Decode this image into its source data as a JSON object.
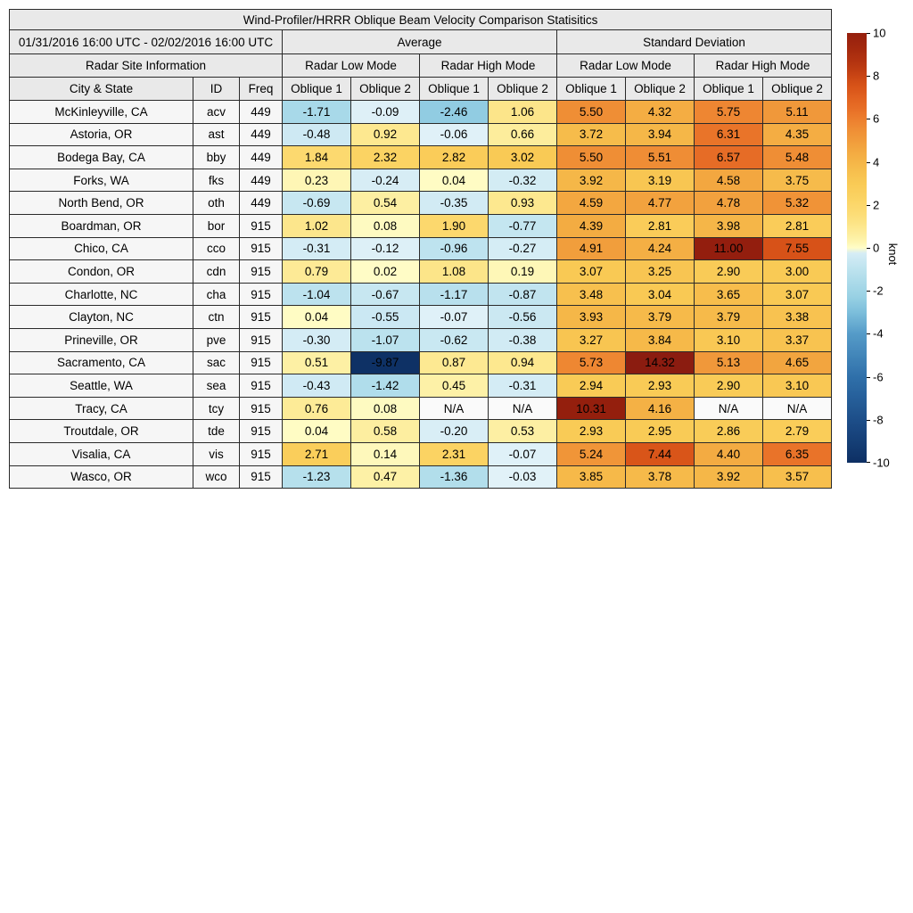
{
  "title": "Wind-Profiler/HRRR Oblique Beam Velocity Comparison Statisitics",
  "date_range": "01/31/2016 16:00 UTC - 02/02/2016 16:00 UTC",
  "headers": {
    "site_info": "Radar Site Information",
    "average": "Average",
    "std_dev": "Standard Deviation",
    "low_mode": "Radar Low Mode",
    "high_mode": "Radar High Mode",
    "city": "City & State",
    "id": "ID",
    "freq": "Freq",
    "oblique1": "Oblique 1",
    "oblique2": "Oblique 2"
  },
  "colorbar": {
    "label": "knot",
    "min": -10,
    "max": 10,
    "ticks": [
      10,
      8,
      6,
      4,
      2,
      0,
      -2,
      -4,
      -6,
      -8,
      -10
    ],
    "colormap_stops": [
      [
        -10.0,
        "#0d2f63"
      ],
      [
        -8.0,
        "#1d4e89"
      ],
      [
        -6.0,
        "#2f70aa"
      ],
      [
        -4.0,
        "#559bc8"
      ],
      [
        -3.0,
        "#7cbedb"
      ],
      [
        -2.2,
        "#9bd2e5"
      ],
      [
        -1.5,
        "#aedcea"
      ],
      [
        -0.9,
        "#c0e4ef"
      ],
      [
        -0.5,
        "#cde9f3"
      ],
      [
        -0.25,
        "#d6edf5"
      ],
      [
        -0.05,
        "#e0f1f8"
      ],
      [
        -0.01,
        "#e2f2f8"
      ],
      [
        0.0,
        "#fffdc8"
      ],
      [
        0.15,
        "#fef8ba"
      ],
      [
        0.4,
        "#fdf2a9"
      ],
      [
        0.8,
        "#fdea95"
      ],
      [
        1.2,
        "#fce384"
      ],
      [
        1.7,
        "#fcdb72"
      ],
      [
        2.3,
        "#fbd363"
      ],
      [
        3.0,
        "#f9ca55"
      ],
      [
        3.8,
        "#f6ba4a"
      ],
      [
        4.5,
        "#f3a941"
      ],
      [
        5.2,
        "#f09639"
      ],
      [
        5.8,
        "#ee8531"
      ],
      [
        6.4,
        "#e87128"
      ],
      [
        7.0,
        "#e16120"
      ],
      [
        7.6,
        "#d65117"
      ],
      [
        8.4,
        "#bb3911"
      ],
      [
        9.2,
        "#a52a0e"
      ],
      [
        10.0,
        "#951f0d"
      ],
      [
        15.0,
        "#8a1b11"
      ]
    ],
    "na_color": "#fafafa"
  },
  "chart_data": {
    "type": "table",
    "title": "Wind-Profiler/HRRR Oblique Beam Velocity Comparison Statisitics",
    "value_columns": [
      "avg_low_oblique1",
      "avg_low_oblique2",
      "avg_high_oblique1",
      "avg_high_oblique2",
      "sd_low_oblique1",
      "sd_low_oblique2",
      "sd_high_oblique1",
      "sd_high_oblique2"
    ],
    "unit": "knot",
    "color_range": [
      -10,
      10
    ],
    "rows": [
      {
        "city": "McKinleyville, CA",
        "id": "acv",
        "freq": "449",
        "values": [
          -1.71,
          -0.09,
          -2.46,
          1.06,
          5.5,
          4.32,
          5.75,
          5.11
        ]
      },
      {
        "city": "Astoria, OR",
        "id": "ast",
        "freq": "449",
        "values": [
          -0.48,
          0.92,
          -0.06,
          0.66,
          3.72,
          3.94,
          6.31,
          4.35
        ]
      },
      {
        "city": "Bodega Bay, CA",
        "id": "bby",
        "freq": "449",
        "values": [
          1.84,
          2.32,
          2.82,
          3.02,
          5.5,
          5.51,
          6.57,
          5.48
        ]
      },
      {
        "city": "Forks, WA",
        "id": "fks",
        "freq": "449",
        "values": [
          0.23,
          -0.24,
          0.04,
          -0.32,
          3.92,
          3.19,
          4.58,
          3.75
        ]
      },
      {
        "city": "North Bend, OR",
        "id": "oth",
        "freq": "449",
        "values": [
          -0.69,
          0.54,
          -0.35,
          0.93,
          4.59,
          4.77,
          4.78,
          5.32
        ]
      },
      {
        "city": "Boardman, OR",
        "id": "bor",
        "freq": "915",
        "values": [
          1.02,
          0.08,
          1.9,
          -0.77,
          4.39,
          2.81,
          3.98,
          2.81
        ]
      },
      {
        "city": "Chico, CA",
        "id": "cco",
        "freq": "915",
        "values": [
          -0.31,
          -0.12,
          -0.96,
          -0.27,
          4.91,
          4.24,
          11.0,
          7.55
        ]
      },
      {
        "city": "Condon, OR",
        "id": "cdn",
        "freq": "915",
        "values": [
          0.79,
          0.02,
          1.08,
          0.19,
          3.07,
          3.25,
          2.9,
          3.0
        ]
      },
      {
        "city": "Charlotte, NC",
        "id": "cha",
        "freq": "915",
        "values": [
          -1.04,
          -0.67,
          -1.17,
          -0.87,
          3.48,
          3.04,
          3.65,
          3.07
        ]
      },
      {
        "city": "Clayton, NC",
        "id": "ctn",
        "freq": "915",
        "values": [
          0.04,
          -0.55,
          -0.07,
          -0.56,
          3.93,
          3.79,
          3.79,
          3.38
        ]
      },
      {
        "city": "Prineville, OR",
        "id": "pve",
        "freq": "915",
        "values": [
          -0.3,
          -1.07,
          -0.62,
          -0.38,
          3.27,
          3.84,
          3.1,
          3.37
        ]
      },
      {
        "city": "Sacramento, CA",
        "id": "sac",
        "freq": "915",
        "values": [
          0.51,
          -9.87,
          0.87,
          0.94,
          5.73,
          14.32,
          5.13,
          4.65
        ]
      },
      {
        "city": "Seattle, WA",
        "id": "sea",
        "freq": "915",
        "values": [
          -0.43,
          -1.42,
          0.45,
          -0.31,
          2.94,
          2.93,
          2.9,
          3.1
        ]
      },
      {
        "city": "Tracy, CA",
        "id": "tcy",
        "freq": "915",
        "values": [
          0.76,
          0.08,
          "N/A",
          "N/A",
          10.31,
          4.16,
          "N/A",
          "N/A"
        ]
      },
      {
        "city": "Troutdale, OR",
        "id": "tde",
        "freq": "915",
        "values": [
          0.04,
          0.58,
          -0.2,
          0.53,
          2.93,
          2.95,
          2.86,
          2.79
        ]
      },
      {
        "city": "Visalia, CA",
        "id": "vis",
        "freq": "915",
        "values": [
          2.71,
          0.14,
          2.31,
          -0.07,
          5.24,
          7.44,
          4.4,
          6.35
        ]
      },
      {
        "city": "Wasco, OR",
        "id": "wco",
        "freq": "915",
        "values": [
          -1.23,
          0.47,
          -1.36,
          -0.03,
          3.85,
          3.78,
          3.92,
          3.57
        ]
      }
    ]
  }
}
